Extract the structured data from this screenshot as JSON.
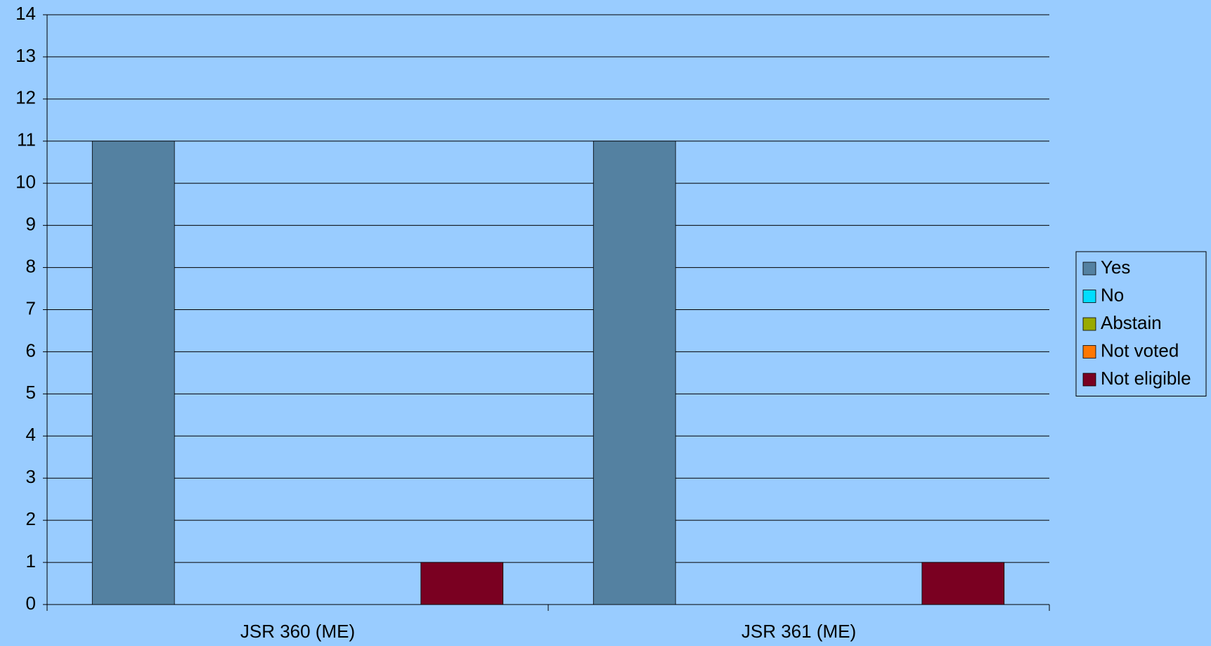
{
  "chart_data": {
    "type": "bar",
    "categories": [
      "JSR 360 (ME)",
      "JSR 361 (ME)"
    ],
    "series": [
      {
        "name": "Yes",
        "color": "#5481a1",
        "values": [
          11,
          11
        ]
      },
      {
        "name": "No",
        "color": "#00ddff",
        "values": [
          0,
          0
        ]
      },
      {
        "name": "Abstain",
        "color": "#99aa00",
        "values": [
          0,
          0
        ]
      },
      {
        "name": "Not voted",
        "color": "#ff7700",
        "values": [
          0,
          0
        ]
      },
      {
        "name": "Not eligible",
        "color": "#7a0021",
        "values": [
          1,
          1
        ]
      }
    ],
    "ylim": [
      0,
      14
    ],
    "yticks": [
      0,
      1,
      2,
      3,
      4,
      5,
      6,
      7,
      8,
      9,
      10,
      11,
      12,
      13,
      14
    ],
    "grid": true,
    "legend": "right"
  }
}
